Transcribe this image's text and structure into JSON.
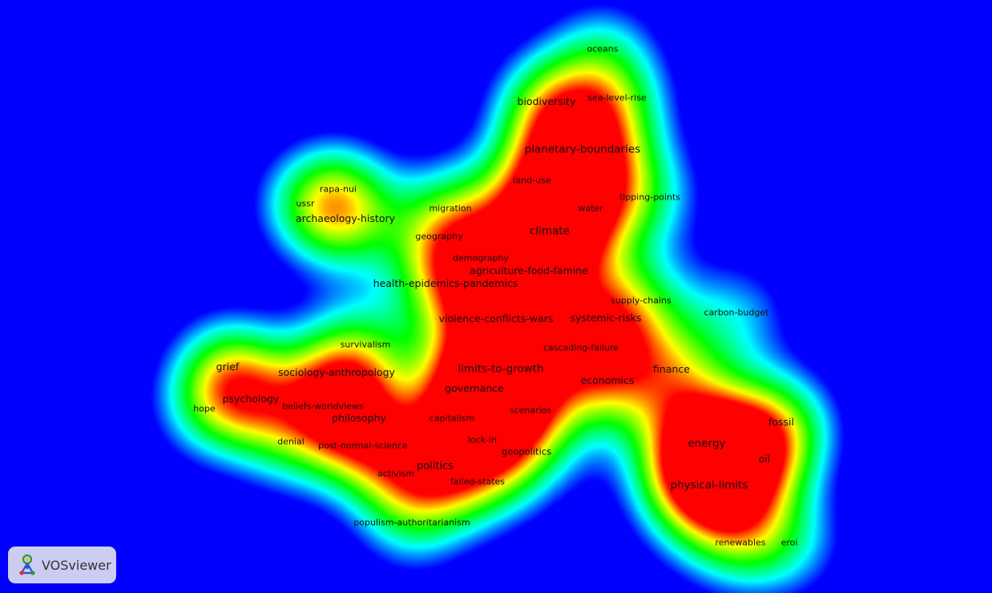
{
  "app": {
    "name": "VOSviewer",
    "logo_icon": "vosviewer-logo-icon"
  },
  "view": "density-visualization",
  "color_scale": [
    "#0000ff",
    "#00ffff",
    "#00ff00",
    "#ffff00",
    "#ff0000"
  ],
  "terms": [
    {
      "id": "oceans",
      "label": "oceans",
      "weight": 1
    },
    {
      "id": "biodiversity",
      "label": "biodiversity",
      "weight": 2
    },
    {
      "id": "sea-level-rise",
      "label": "sea-level-rise",
      "weight": 1
    },
    {
      "id": "planetary-boundaries",
      "label": "planetary-boundaries",
      "weight": 3
    },
    {
      "id": "land-use",
      "label": "land-use",
      "weight": 1
    },
    {
      "id": "rapa-nui",
      "label": "rapa-nui",
      "weight": 1
    },
    {
      "id": "ussr",
      "label": "ussr",
      "weight": 1
    },
    {
      "id": "tipping-points",
      "label": "tipping-points",
      "weight": 1
    },
    {
      "id": "migration",
      "label": "migration",
      "weight": 1
    },
    {
      "id": "water",
      "label": "water",
      "weight": 1
    },
    {
      "id": "archaeology-history",
      "label": "archaeology-history",
      "weight": 2
    },
    {
      "id": "climate",
      "label": "climate",
      "weight": 3
    },
    {
      "id": "geography",
      "label": "geography",
      "weight": 1
    },
    {
      "id": "demography",
      "label": "demography",
      "weight": 1
    },
    {
      "id": "agriculture-food-famine",
      "label": "agriculture-food-famine",
      "weight": 2
    },
    {
      "id": "health-epidemics-pandemics",
      "label": "health-epidemics-pandemics",
      "weight": 2
    },
    {
      "id": "supply-chains",
      "label": "supply-chains",
      "weight": 1
    },
    {
      "id": "carbon-budget",
      "label": "carbon-budget",
      "weight": 1
    },
    {
      "id": "violence-conflicts-wars",
      "label": "violence-conflicts-wars",
      "weight": 2
    },
    {
      "id": "systemic-risks",
      "label": "systemic-risks",
      "weight": 2
    },
    {
      "id": "survivalism",
      "label": "survivalism",
      "weight": 1
    },
    {
      "id": "cascading-failure",
      "label": "cascading-failure",
      "weight": 1
    },
    {
      "id": "grief",
      "label": "grief",
      "weight": 2
    },
    {
      "id": "limits-to-growth",
      "label": "limits-to-growth",
      "weight": 3
    },
    {
      "id": "sociology-anthropology",
      "label": "sociology-anthropology",
      "weight": 2
    },
    {
      "id": "finance",
      "label": "finance",
      "weight": 2
    },
    {
      "id": "economics",
      "label": "economics",
      "weight": 2
    },
    {
      "id": "governance",
      "label": "governance",
      "weight": 2
    },
    {
      "id": "psychology",
      "label": "psychology",
      "weight": 2
    },
    {
      "id": "beliefs-worldviews",
      "label": "beliefs-worldviews",
      "weight": 1
    },
    {
      "id": "hope",
      "label": "hope",
      "weight": 1
    },
    {
      "id": "scenarios",
      "label": "scenarios",
      "weight": 1
    },
    {
      "id": "philosophy",
      "label": "philosophy",
      "weight": 2
    },
    {
      "id": "capitalism",
      "label": "capitalism",
      "weight": 1
    },
    {
      "id": "fossil",
      "label": "fossil",
      "weight": 2
    },
    {
      "id": "denial",
      "label": "denial",
      "weight": 1
    },
    {
      "id": "lock-in",
      "label": "lock-in",
      "weight": 1
    },
    {
      "id": "energy",
      "label": "energy",
      "weight": 3
    },
    {
      "id": "post-normal-science",
      "label": "post-normal-science",
      "weight": 1
    },
    {
      "id": "geopolitics",
      "label": "geopolitics",
      "weight": 1
    },
    {
      "id": "oil",
      "label": "oil",
      "weight": 1
    },
    {
      "id": "politics",
      "label": "politics",
      "weight": 2
    },
    {
      "id": "activism",
      "label": "activism",
      "weight": 1
    },
    {
      "id": "failed-states",
      "label": "failed-states",
      "weight": 1
    },
    {
      "id": "physical-limits",
      "label": "physical-limits",
      "weight": 3
    },
    {
      "id": "populism-authoritarianism",
      "label": "populism-authoritarianism",
      "weight": 1
    },
    {
      "id": "renewables",
      "label": "renewables",
      "weight": 1
    },
    {
      "id": "eroi",
      "label": "eroi",
      "weight": 1
    }
  ]
}
